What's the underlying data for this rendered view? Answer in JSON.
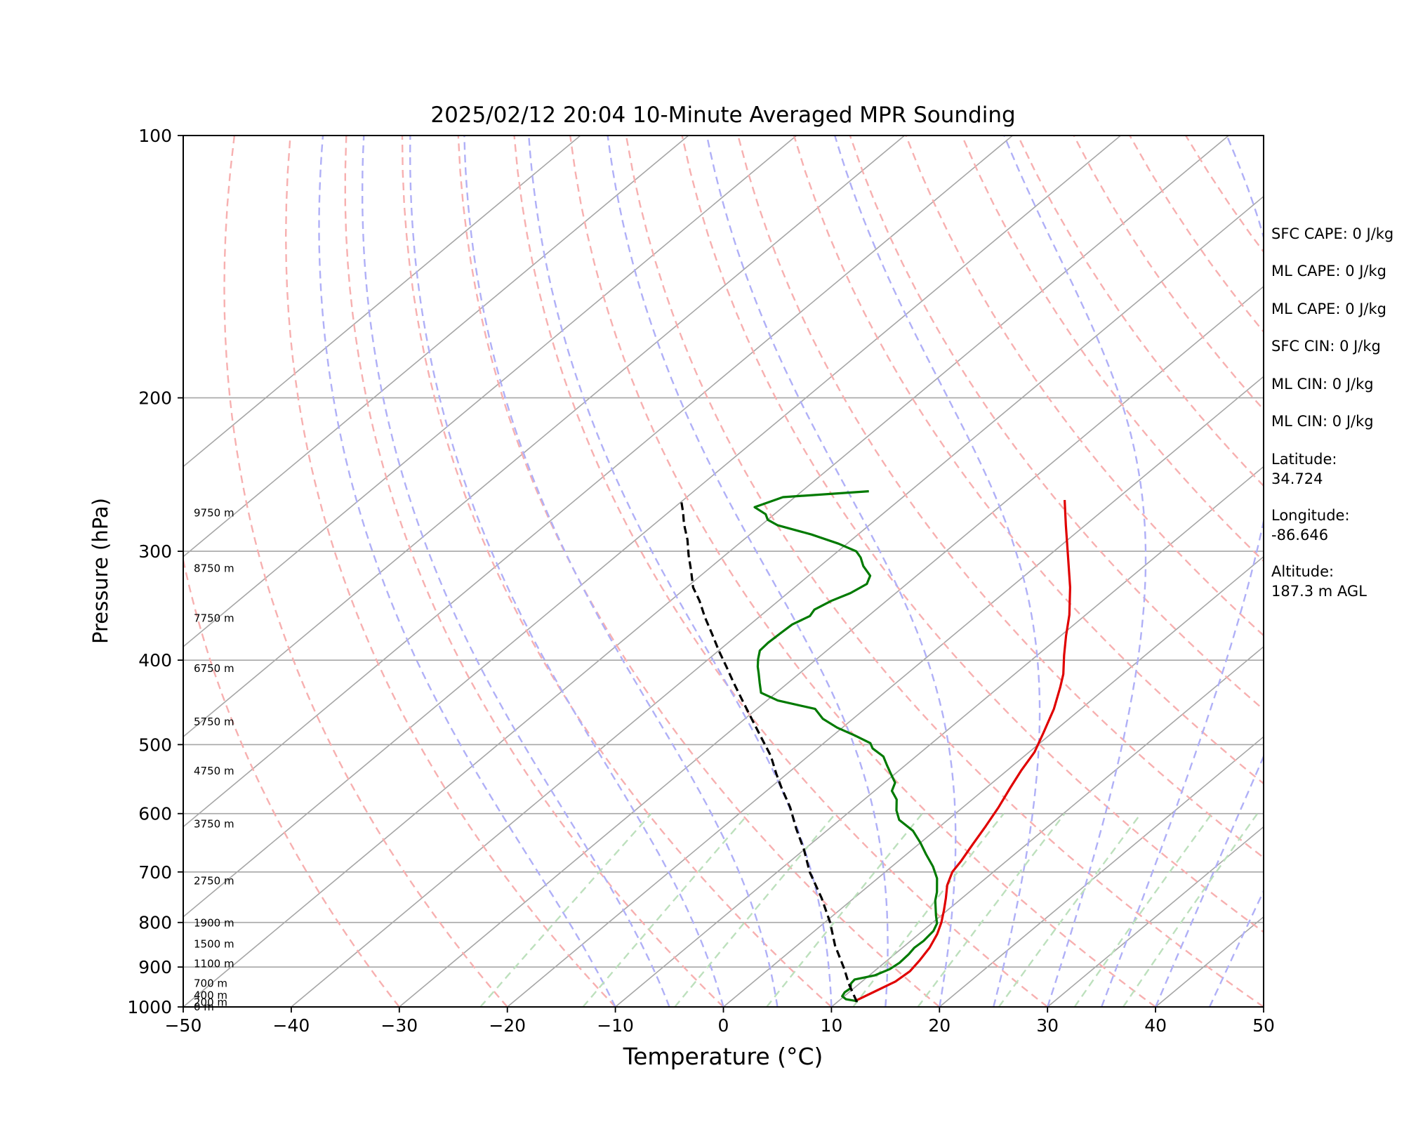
{
  "chart_data": {
    "type": "skew-t",
    "title": "2025/02/12 20:04 10-Minute Averaged MPR Sounding",
    "xlabel": "Temperature (°C)",
    "ylabel": "Pressure (hPa)",
    "xlim": [
      -50,
      50
    ],
    "ylim": [
      1000,
      100
    ],
    "y_scale": "log",
    "grid": true,
    "x_ticks": [
      "−50",
      "−40",
      "−30",
      "−20",
      "−10",
      "0",
      "10",
      "20",
      "30",
      "40",
      "50"
    ],
    "x_tick_values": [
      -50,
      -40,
      -30,
      -20,
      -10,
      0,
      10,
      20,
      30,
      40,
      50
    ],
    "y_ticks": [
      "100",
      "200",
      "300",
      "400",
      "500",
      "600",
      "700",
      "800",
      "900",
      "1000"
    ],
    "y_tick_values": [
      100,
      200,
      300,
      400,
      500,
      600,
      700,
      800,
      900,
      1000
    ],
    "isotherms": [
      -110,
      -100,
      -90,
      -80,
      -70,
      -60,
      -50,
      -40,
      -30,
      -20,
      -10,
      0,
      10,
      20,
      30,
      40,
      50
    ],
    "dry_adiabats_theta_c": [
      -30,
      -20,
      -10,
      0,
      10,
      20,
      30,
      40,
      50,
      60,
      70,
      80,
      90,
      100,
      110,
      120,
      130,
      140,
      150
    ],
    "moist_adiabats_t0_c": [
      -10,
      -5,
      0,
      5,
      10,
      15,
      20,
      25,
      30,
      35,
      40,
      45
    ],
    "mixing_ratio_lines_t1000_c": [
      -22.5,
      -13,
      -4.5,
      4,
      12,
      18,
      25.5,
      32.5,
      37
    ],
    "height_labels": [
      {
        "text": "9750 m",
        "p": 271
      },
      {
        "text": "8750 m",
        "p": 314
      },
      {
        "text": "7750 m",
        "p": 358
      },
      {
        "text": "6750 m",
        "p": 409
      },
      {
        "text": "5750 m",
        "p": 471
      },
      {
        "text": "4750 m",
        "p": 536
      },
      {
        "text": "3750 m",
        "p": 617
      },
      {
        "text": "2750 m",
        "p": 717
      },
      {
        "text": "1900 m",
        "p": 801
      },
      {
        "text": "1500 m",
        "p": 847
      },
      {
        "text": "1100 m",
        "p": 892
      },
      {
        "text": "700 m",
        "p": 940
      },
      {
        "text": "400 m",
        "p": 970
      },
      {
        "text": "200 m",
        "p": 988
      },
      {
        "text": "0 m",
        "p": 1000
      }
    ],
    "series": [
      {
        "color": "#e00000",
        "points": [
          [
            11.5,
            985
          ],
          [
            12.3,
            960
          ],
          [
            13.1,
            935
          ],
          [
            13.3,
            910
          ],
          [
            13.0,
            885
          ],
          [
            12.5,
            855
          ],
          [
            11.7,
            825
          ],
          [
            10.8,
            800
          ],
          [
            9.7,
            775
          ],
          [
            8.5,
            750
          ],
          [
            7.2,
            725
          ],
          [
            6.2,
            700
          ],
          [
            5.8,
            680
          ],
          [
            5.0,
            650
          ],
          [
            4.2,
            620
          ],
          [
            3.3,
            590
          ],
          [
            2.2,
            560
          ],
          [
            1.3,
            535
          ],
          [
            0.5,
            510
          ],
          [
            -0.8,
            485
          ],
          [
            -2.5,
            455
          ],
          [
            -4.3,
            430
          ],
          [
            -5.5,
            415
          ],
          [
            -7.5,
            395
          ],
          [
            -9.5,
            375
          ],
          [
            -11.5,
            355
          ],
          [
            -14.5,
            330
          ],
          [
            -18.0,
            305
          ],
          [
            -21.8,
            280
          ],
          [
            -24.7,
            262
          ]
        ]
      },
      {
        "color": "#007a00",
        "points": [
          [
            11.8,
            985
          ],
          [
            10.5,
            980
          ],
          [
            9.8,
            972
          ],
          [
            9.6,
            962
          ],
          [
            9.7,
            952
          ],
          [
            9.2,
            940
          ],
          [
            9.1,
            930
          ],
          [
            10.5,
            920
          ],
          [
            11.2,
            905
          ],
          [
            11.4,
            890
          ],
          [
            11.3,
            870
          ],
          [
            11.1,
            855
          ],
          [
            11.2,
            840
          ],
          [
            11.0,
            818
          ],
          [
            10.5,
            802
          ],
          [
            9.5,
            785
          ],
          [
            7.8,
            755
          ],
          [
            7.0,
            738
          ],
          [
            5.5,
            712
          ],
          [
            3.8,
            690
          ],
          [
            1.8,
            668
          ],
          [
            0.0,
            648
          ],
          [
            -2.0,
            628
          ],
          [
            -4.5,
            610
          ],
          [
            -5.8,
            595
          ],
          [
            -7.0,
            578
          ],
          [
            -8.4,
            565
          ],
          [
            -9.0,
            553
          ],
          [
            -10.4,
            540
          ],
          [
            -11.7,
            528
          ],
          [
            -13.0,
            516
          ],
          [
            -14.9,
            505
          ],
          [
            -15.7,
            498
          ],
          [
            -18.0,
            488
          ],
          [
            -20.5,
            478
          ],
          [
            -22.8,
            467
          ],
          [
            -24.6,
            455
          ],
          [
            -29.0,
            445
          ],
          [
            -31.4,
            436
          ],
          [
            -32.6,
            425
          ],
          [
            -33.8,
            414
          ],
          [
            -34.6,
            407
          ],
          [
            -35.4,
            399
          ],
          [
            -36.2,
            390
          ],
          [
            -36.3,
            382
          ],
          [
            -36.2,
            372
          ],
          [
            -36.1,
            364
          ],
          [
            -35.4,
            356
          ],
          [
            -35.7,
            350
          ],
          [
            -35.1,
            342
          ],
          [
            -34.2,
            335
          ],
          [
            -33.7,
            327
          ],
          [
            -34.3,
            320
          ],
          [
            -36.0,
            312
          ],
          [
            -37.2,
            305
          ],
          [
            -38.3,
            300
          ],
          [
            -40.8,
            294
          ],
          [
            -44.3,
            287
          ],
          [
            -48.5,
            280
          ],
          [
            -50.0,
            276
          ],
          [
            -50.8,
            272
          ],
          [
            -52.6,
            267
          ],
          [
            -51.1,
            260
          ],
          [
            -43.8,
            256
          ]
        ]
      },
      {
        "color": "#000000",
        "dashed": true,
        "points": [
          [
            11.8,
            987
          ],
          [
            9.0,
            940
          ],
          [
            7.0,
            905
          ],
          [
            3.5,
            850
          ],
          [
            0.5,
            800
          ],
          [
            -3.0,
            750
          ],
          [
            -7.0,
            700
          ],
          [
            -10.0,
            660
          ],
          [
            -13.0,
            625
          ],
          [
            -16.0,
            590
          ],
          [
            -19.0,
            560
          ],
          [
            -21.0,
            540
          ],
          [
            -23.5,
            515
          ],
          [
            -26.5,
            490
          ],
          [
            -29.0,
            470
          ],
          [
            -32.0,
            447
          ],
          [
            -35.0,
            425
          ],
          [
            -37.5,
            407
          ],
          [
            -40.0,
            390
          ],
          [
            -42.5,
            373
          ],
          [
            -45.0,
            357
          ],
          [
            -47.3,
            342
          ],
          [
            -49.4,
            330
          ],
          [
            -51.4,
            316
          ],
          [
            -53.4,
            303
          ],
          [
            -55.2,
            291
          ],
          [
            -57.3,
            279
          ],
          [
            -58.6,
            271
          ],
          [
            -60.2,
            262
          ]
        ]
      }
    ]
  },
  "info_panel": {
    "sfc_cape": "SFC CAPE: 0 J/kg",
    "ml_cape_1": "ML CAPE: 0 J/kg",
    "ml_cape_2": "ML CAPE: 0 J/kg",
    "sfc_cin": "SFC CIN: 0 J/kg",
    "ml_cin_1": "ML CIN: 0 J/kg",
    "ml_cin_2": "ML CIN: 0 J/kg",
    "latitude_label": "Latitude:",
    "latitude_value": "34.724",
    "longitude_label": "Longitude:",
    "longitude_value": "-86.646",
    "altitude_label": "Altitude:",
    "altitude_value": "187.3 m AGL"
  }
}
